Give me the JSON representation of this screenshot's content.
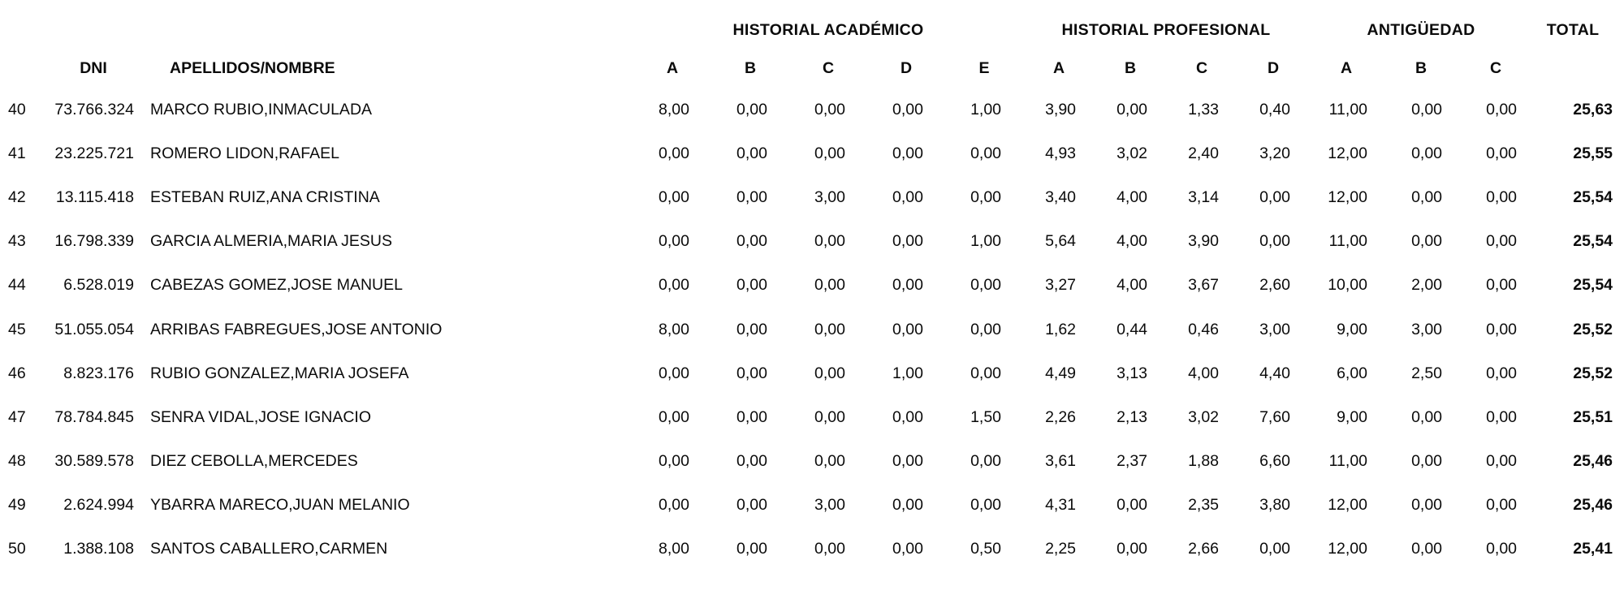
{
  "table": {
    "groups": {
      "academico": "HISTORIAL ACADÉMICO",
      "profesional": "HISTORIAL PROFESIONAL",
      "antiguedad": "ANTIGÜEDAD",
      "total": "TOTAL"
    },
    "columns": {
      "dni": "DNI",
      "name": "APELLIDOS/NOMBRE",
      "academico": [
        "A",
        "B",
        "C",
        "D",
        "E"
      ],
      "profesional": [
        "A",
        "B",
        "C",
        "D"
      ],
      "antiguedad": [
        "A",
        "B",
        "C"
      ]
    },
    "rows": [
      {
        "rank": "40",
        "dni": "73.766.324",
        "name": "MARCO RUBIO,INMACULADA",
        "academico": [
          "8,00",
          "0,00",
          "0,00",
          "0,00",
          "1,00"
        ],
        "profesional": [
          "3,90",
          "0,00",
          "1,33",
          "0,40"
        ],
        "antiguedad": [
          "11,00",
          "0,00",
          "0,00"
        ],
        "total": "25,63"
      },
      {
        "rank": "41",
        "dni": "23.225.721",
        "name": "ROMERO LIDON,RAFAEL",
        "academico": [
          "0,00",
          "0,00",
          "0,00",
          "0,00",
          "0,00"
        ],
        "profesional": [
          "4,93",
          "3,02",
          "2,40",
          "3,20"
        ],
        "antiguedad": [
          "12,00",
          "0,00",
          "0,00"
        ],
        "total": "25,55"
      },
      {
        "rank": "42",
        "dni": "13.115.418",
        "name": "ESTEBAN RUIZ,ANA CRISTINA",
        "academico": [
          "0,00",
          "0,00",
          "3,00",
          "0,00",
          "0,00"
        ],
        "profesional": [
          "3,40",
          "4,00",
          "3,14",
          "0,00"
        ],
        "antiguedad": [
          "12,00",
          "0,00",
          "0,00"
        ],
        "total": "25,54"
      },
      {
        "rank": "43",
        "dni": "16.798.339",
        "name": "GARCIA ALMERIA,MARIA JESUS",
        "academico": [
          "0,00",
          "0,00",
          "0,00",
          "0,00",
          "1,00"
        ],
        "profesional": [
          "5,64",
          "4,00",
          "3,90",
          "0,00"
        ],
        "antiguedad": [
          "11,00",
          "0,00",
          "0,00"
        ],
        "total": "25,54"
      },
      {
        "rank": "44",
        "dni": "6.528.019",
        "name": "CABEZAS GOMEZ,JOSE MANUEL",
        "academico": [
          "0,00",
          "0,00",
          "0,00",
          "0,00",
          "0,00"
        ],
        "profesional": [
          "3,27",
          "4,00",
          "3,67",
          "2,60"
        ],
        "antiguedad": [
          "10,00",
          "2,00",
          "0,00"
        ],
        "total": "25,54"
      },
      {
        "rank": "45",
        "dni": "51.055.054",
        "name": "ARRIBAS FABREGUES,JOSE ANTONIO",
        "academico": [
          "8,00",
          "0,00",
          "0,00",
          "0,00",
          "0,00"
        ],
        "profesional": [
          "1,62",
          "0,44",
          "0,46",
          "3,00"
        ],
        "antiguedad": [
          "9,00",
          "3,00",
          "0,00"
        ],
        "total": "25,52"
      },
      {
        "rank": "46",
        "dni": "8.823.176",
        "name": "RUBIO GONZALEZ,MARIA JOSEFA",
        "academico": [
          "0,00",
          "0,00",
          "0,00",
          "1,00",
          "0,00"
        ],
        "profesional": [
          "4,49",
          "3,13",
          "4,00",
          "4,40"
        ],
        "antiguedad": [
          "6,00",
          "2,50",
          "0,00"
        ],
        "total": "25,52"
      },
      {
        "rank": "47",
        "dni": "78.784.845",
        "name": "SENRA VIDAL,JOSE IGNACIO",
        "academico": [
          "0,00",
          "0,00",
          "0,00",
          "0,00",
          "1,50"
        ],
        "profesional": [
          "2,26",
          "2,13",
          "3,02",
          "7,60"
        ],
        "antiguedad": [
          "9,00",
          "0,00",
          "0,00"
        ],
        "total": "25,51"
      },
      {
        "rank": "48",
        "dni": "30.589.578",
        "name": "DIEZ CEBOLLA,MERCEDES",
        "academico": [
          "0,00",
          "0,00",
          "0,00",
          "0,00",
          "0,00"
        ],
        "profesional": [
          "3,61",
          "2,37",
          "1,88",
          "6,60"
        ],
        "antiguedad": [
          "11,00",
          "0,00",
          "0,00"
        ],
        "total": "25,46"
      },
      {
        "rank": "49",
        "dni": "2.624.994",
        "name": "YBARRA MARECO,JUAN MELANIO",
        "academico": [
          "0,00",
          "0,00",
          "3,00",
          "0,00",
          "0,00"
        ],
        "profesional": [
          "4,31",
          "0,00",
          "2,35",
          "3,80"
        ],
        "antiguedad": [
          "12,00",
          "0,00",
          "0,00"
        ],
        "total": "25,46"
      },
      {
        "rank": "50",
        "dni": "1.388.108",
        "name": "SANTOS CABALLERO,CARMEN",
        "academico": [
          "8,00",
          "0,00",
          "0,00",
          "0,00",
          "0,50"
        ],
        "profesional": [
          "2,25",
          "0,00",
          "2,66",
          "0,00"
        ],
        "antiguedad": [
          "12,00",
          "0,00",
          "0,00"
        ],
        "total": "25,41"
      }
    ]
  }
}
